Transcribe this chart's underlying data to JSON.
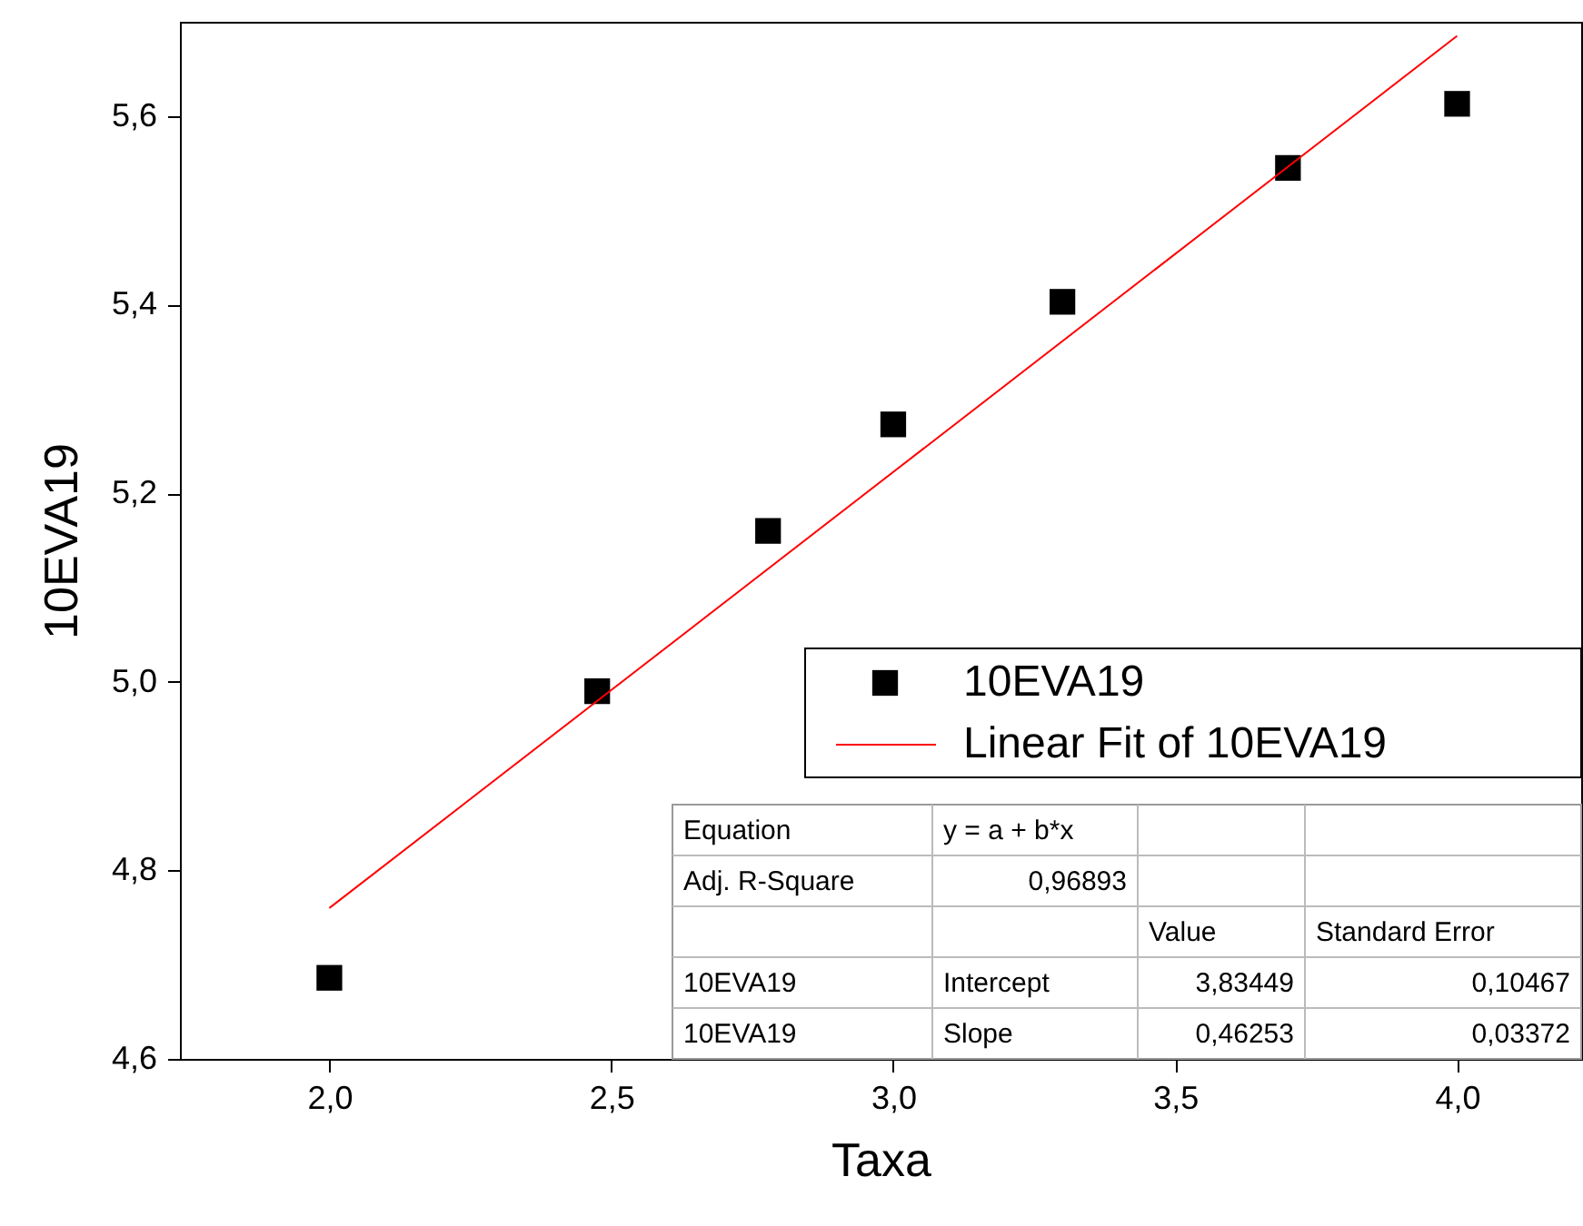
{
  "chart_data": {
    "type": "scatter",
    "xlabel": "Taxa",
    "ylabel": "10EVA19",
    "xlim": [
      1.735,
      4.22
    ],
    "ylim": [
      4.6,
      5.7
    ],
    "xticks": [
      {
        "value": 2.0,
        "label": "2,0"
      },
      {
        "value": 2.5,
        "label": "2,5"
      },
      {
        "value": 3.0,
        "label": "3,0"
      },
      {
        "value": 3.5,
        "label": "3,5"
      },
      {
        "value": 4.0,
        "label": "4,0"
      }
    ],
    "yticks": [
      {
        "value": 4.6,
        "label": "4,6"
      },
      {
        "value": 4.8,
        "label": "4,8"
      },
      {
        "value": 5.0,
        "label": "5,0"
      },
      {
        "value": 5.2,
        "label": "5,2"
      },
      {
        "value": 5.4,
        "label": "5,4"
      },
      {
        "value": 5.6,
        "label": "5,6"
      }
    ],
    "series": [
      {
        "name": "10EVA19",
        "color": "#000000",
        "marker": "square",
        "x": [
          2.0,
          2.475,
          2.778,
          3.0,
          3.3,
          3.7,
          4.0
        ],
        "values": [
          4.686,
          4.99,
          5.16,
          5.273,
          5.403,
          5.545,
          5.613
        ]
      },
      {
        "name": "Linear Fit of 10EVA19",
        "type": "line",
        "color": "#ff0000",
        "x": [
          2.0,
          4.0
        ],
        "values": [
          4.76,
          5.685
        ]
      }
    ],
    "legend": "right",
    "grid": false,
    "annotations": [
      "Equation",
      "y = a + b*x",
      "Adj. R-Square",
      "0,96893",
      "Value",
      "Standard Error",
      "10EVA19",
      "Intercept",
      "3,83449",
      "0,10467",
      "10EVA19",
      "Slope",
      "0,46253",
      "0,03372"
    ]
  }
}
